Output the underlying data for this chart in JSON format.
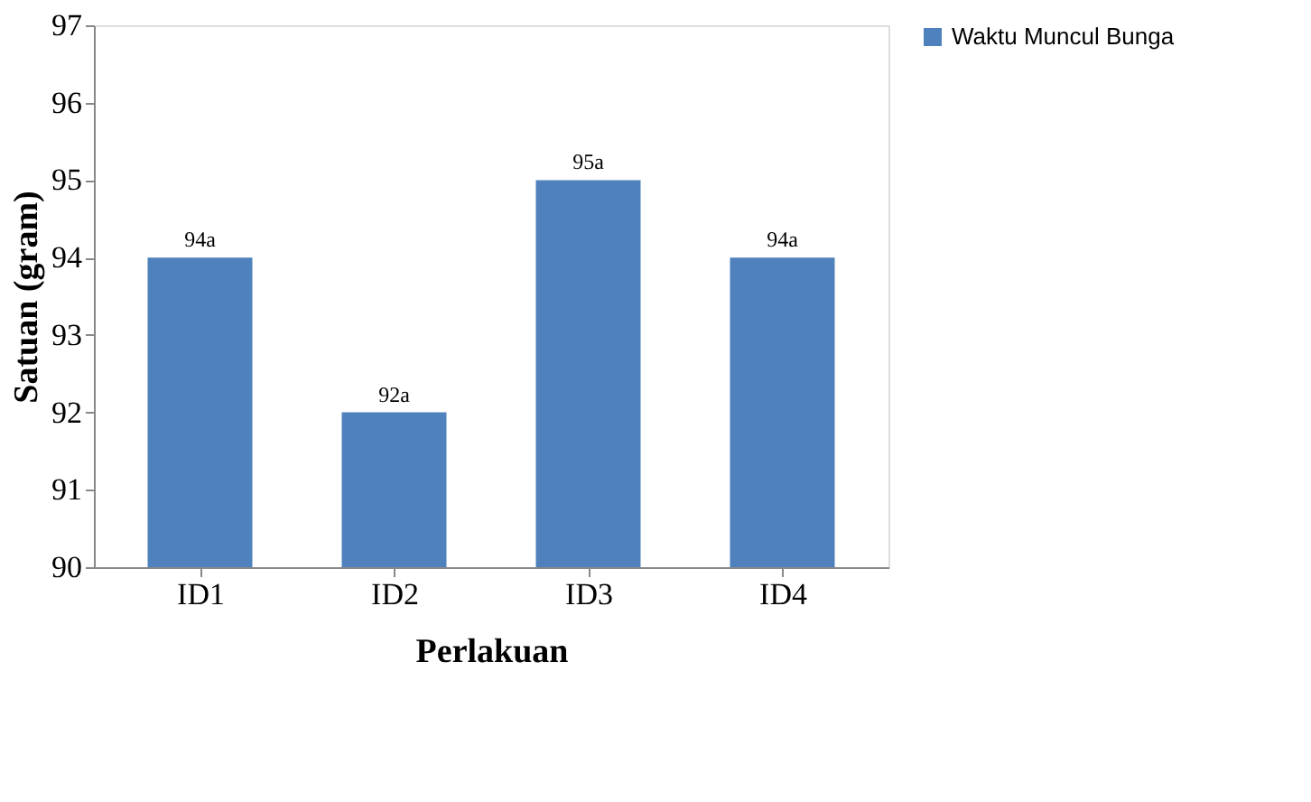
{
  "chart_data": {
    "type": "bar",
    "xlabel": "Perlakuan",
    "ylabel": "Satuan (gram)",
    "categories": [
      "ID1",
      "ID2",
      "ID3",
      "ID4"
    ],
    "series": [
      {
        "name": "Waktu Muncul Bunga",
        "color": "#4f81bd",
        "values": [
          94,
          92,
          95,
          94
        ],
        "value_labels": [
          "94a",
          "92a",
          "95a",
          "94a"
        ]
      }
    ],
    "ylim": [
      90,
      97
    ],
    "yticks": [
      90,
      91,
      92,
      93,
      94,
      95,
      96,
      97
    ],
    "grid": false,
    "legend": "right"
  }
}
